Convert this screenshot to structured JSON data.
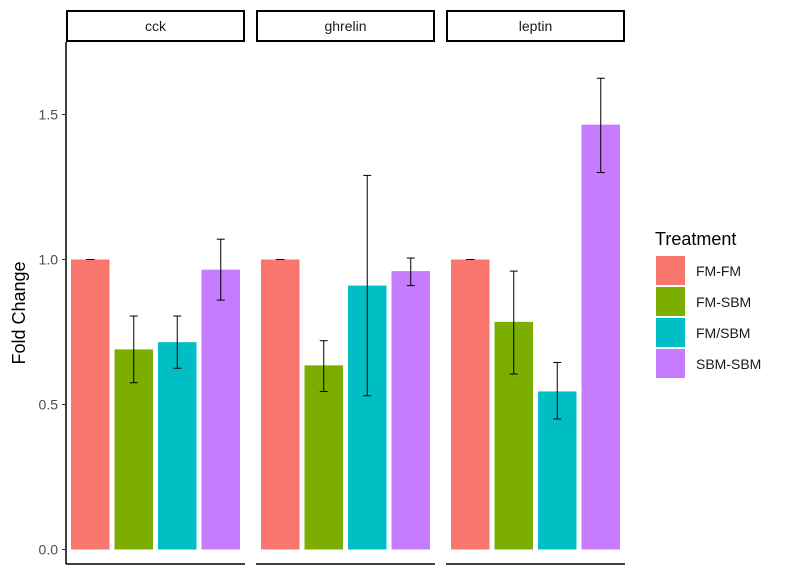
{
  "chart_data": {
    "type": "bar",
    "facets": [
      "cck",
      "ghrelin",
      "leptin"
    ],
    "ylabel": "Fold Change",
    "xlabel": "",
    "ylim": [
      -0.05,
      1.75
    ],
    "yticks": [
      0.0,
      0.5,
      1.0,
      1.5
    ],
    "ytick_labels": [
      "0.0",
      "0.5",
      "1.0",
      "1.5"
    ],
    "legend": {
      "title": "Treatment",
      "position": "right"
    },
    "grid": false,
    "series": [
      {
        "name": "FM-FM",
        "color": "#F8766D",
        "values": [
          1.0,
          1.0,
          1.0
        ],
        "error_low": [
          1.0,
          1.0,
          1.0
        ],
        "error_high": [
          1.0,
          1.0,
          1.0
        ]
      },
      {
        "name": "FM-SBM",
        "color": "#7CAE00",
        "values": [
          0.69,
          0.635,
          0.785
        ],
        "error_low": [
          0.575,
          0.545,
          0.605
        ],
        "error_high": [
          0.805,
          0.72,
          0.96
        ]
      },
      {
        "name": "FM/SBM",
        "color": "#00BFC4",
        "values": [
          0.715,
          0.91,
          0.545
        ],
        "error_low": [
          0.625,
          0.53,
          0.45
        ],
        "error_high": [
          0.805,
          1.29,
          0.645
        ]
      },
      {
        "name": "SBM-SBM",
        "color": "#C77CFF",
        "values": [
          0.965,
          0.96,
          1.465
        ],
        "error_low": [
          0.86,
          0.91,
          1.3
        ],
        "error_high": [
          1.07,
          1.005,
          1.625
        ]
      }
    ]
  }
}
